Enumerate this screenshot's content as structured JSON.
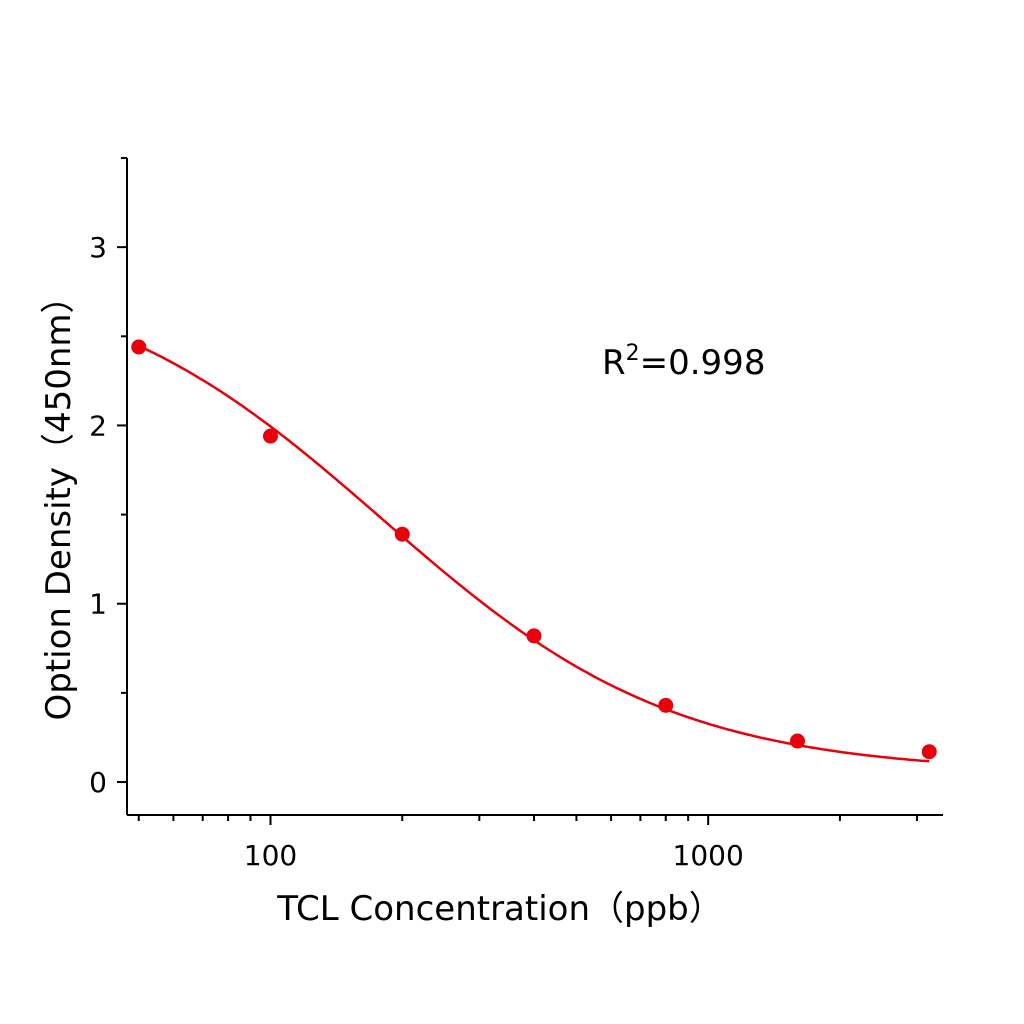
{
  "chart_data": {
    "type": "scatter",
    "xlabel": "TCL  Concentration（ppb）",
    "ylabel": "Option Density（450nm）",
    "x_scale": "log",
    "xlim": [
      47,
      3440
    ],
    "ylim": [
      -0.185,
      3.5
    ],
    "x_ticks": [
      100,
      1000
    ],
    "x_tick_labels": [
      "100",
      "1000"
    ],
    "y_ticks": [
      0,
      1,
      2,
      3
    ],
    "y_tick_labels": [
      "0",
      "1",
      "2",
      "3"
    ],
    "grid": false,
    "legend": "none",
    "annotation": {
      "base": "R",
      "sup": "2",
      "rest": "=0.998"
    },
    "series": [
      {
        "color": "#e8000b",
        "marker": "circle",
        "fit_line": "4-parameter logistic",
        "x": [
          50,
          100,
          200,
          400,
          800,
          1600,
          3200
        ],
        "y": [
          2.44,
          1.94,
          1.39,
          0.82,
          0.43,
          0.23,
          0.17
        ]
      }
    ]
  }
}
